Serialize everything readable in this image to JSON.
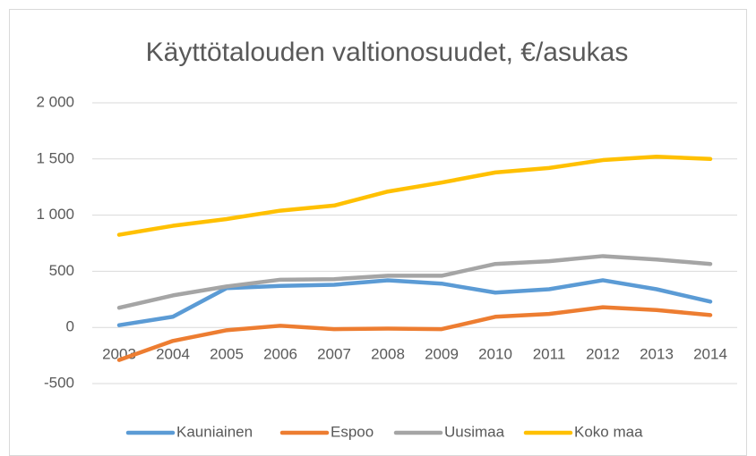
{
  "chart_data": {
    "type": "line",
    "title": "Käyttötalouden valtionosuudet, €/asukas",
    "categories": [
      "2003",
      "2004",
      "2005",
      "2006",
      "2007",
      "2008",
      "2009",
      "2010",
      "2011",
      "2012",
      "2013",
      "2014"
    ],
    "series": [
      {
        "name": "Kauniainen",
        "color": "#5b9bd5",
        "values": [
          20,
          95,
          350,
          370,
          380,
          420,
          390,
          310,
          340,
          420,
          340,
          230
        ]
      },
      {
        "name": "Espoo",
        "color": "#ed7d31",
        "values": [
          -290,
          -120,
          -25,
          15,
          -15,
          -10,
          -15,
          95,
          120,
          180,
          155,
          110
        ]
      },
      {
        "name": "Uusimaa",
        "color": "#a5a5a5",
        "values": [
          175,
          285,
          365,
          425,
          430,
          460,
          460,
          565,
          590,
          635,
          605,
          565
        ]
      },
      {
        "name": "Koko maa",
        "color": "#ffc000",
        "values": [
          825,
          905,
          965,
          1040,
          1085,
          1210,
          1290,
          1380,
          1420,
          1490,
          1520,
          1500
        ]
      }
    ],
    "ylim": [
      -500,
      2000
    ],
    "yticks": [
      {
        "value": -500,
        "label": "-500"
      },
      0,
      500,
      {
        "value": 1000,
        "label": "1 000"
      },
      {
        "value": 1500,
        "label": "1 500"
      },
      {
        "value": 2000,
        "label": "2 000"
      }
    ],
    "grid": true,
    "legend": "bottom"
  }
}
